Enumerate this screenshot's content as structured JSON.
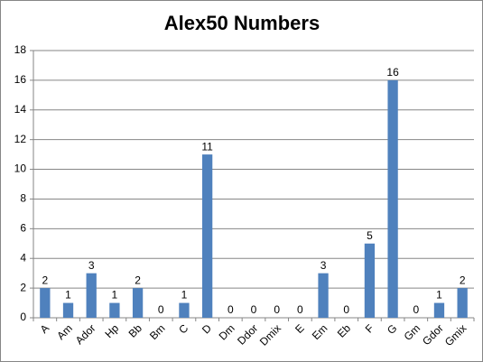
{
  "chart_data": {
    "type": "bar",
    "title": "Alex50 Numbers",
    "categories": [
      "A",
      "Am",
      "Ador",
      "Hp",
      "Bb",
      "Bm",
      "C",
      "D",
      "Dm",
      "Ddor",
      "Dmix",
      "E",
      "Em",
      "Eb",
      "F",
      "G",
      "Gm",
      "Gdor",
      "Gmix"
    ],
    "values": [
      2,
      1,
      3,
      1,
      2,
      0,
      1,
      11,
      0,
      0,
      0,
      0,
      3,
      0,
      5,
      16,
      0,
      1,
      2
    ],
    "color": "#4f81bd",
    "ylim": [
      0,
      18
    ],
    "yticks": [
      0,
      2,
      4,
      6,
      8,
      10,
      12,
      14,
      16,
      18
    ],
    "grid": true
  }
}
